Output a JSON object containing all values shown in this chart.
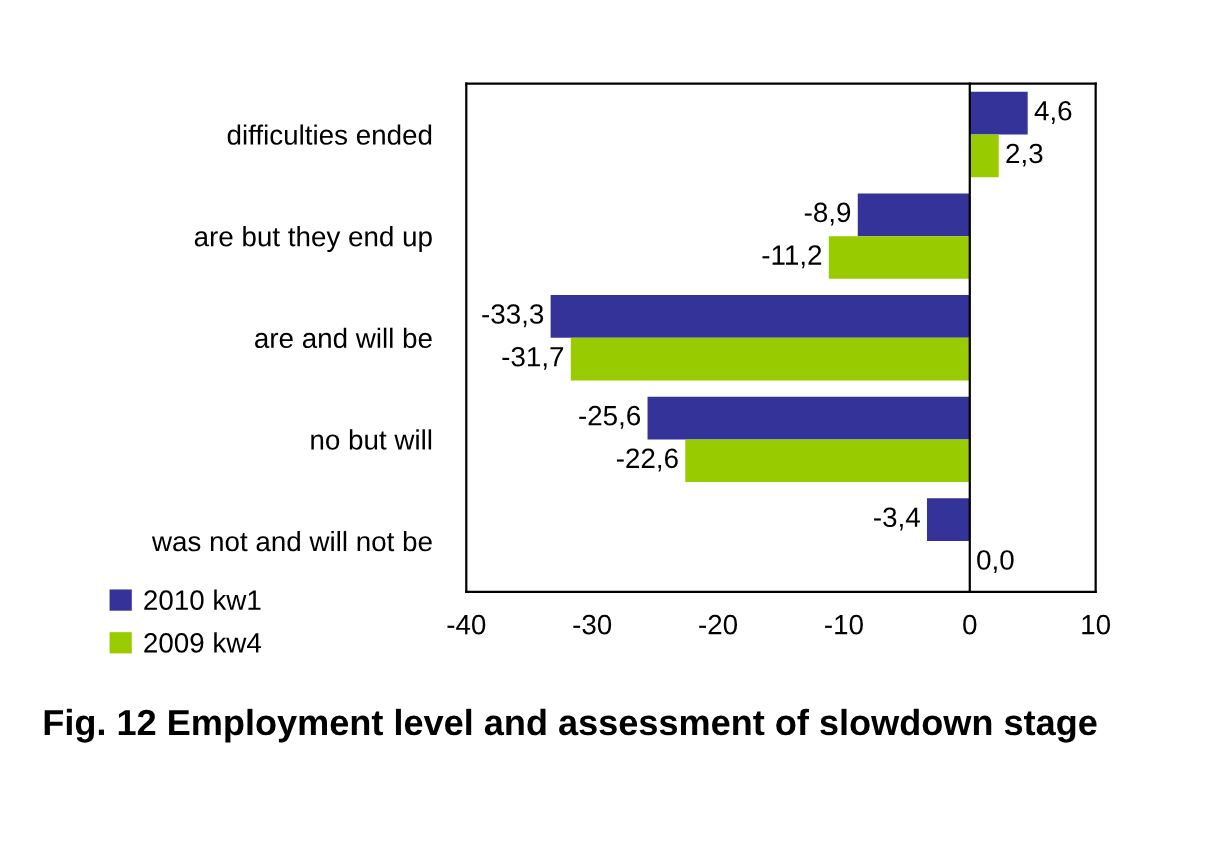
{
  "chart_data": {
    "type": "bar",
    "orientation": "horizontal",
    "title": "Fig. 12 Employment level and assessment of slowdown stage",
    "categories": [
      "difficulties ended",
      "are but they end up",
      "are and will be",
      "no but will",
      "was not and will not be"
    ],
    "series": [
      {
        "name": "2010 kw1",
        "color": "#333399",
        "values": [
          4.6,
          -8.9,
          -33.3,
          -25.6,
          -3.4
        ],
        "value_labels": [
          "4,6",
          "-8,9",
          "-33,3",
          "-25,6",
          "-3,4"
        ]
      },
      {
        "name": "2009 kw4",
        "color": "#99cc00",
        "values": [
          2.3,
          -11.2,
          -31.7,
          -22.6,
          0.0
        ],
        "value_labels": [
          "2,3",
          "-11,2",
          "-31,7",
          "-22,6",
          "0,0"
        ]
      }
    ],
    "xlim": [
      -40,
      10
    ],
    "xticks": [
      -40,
      -30,
      -20,
      -10,
      0,
      10
    ],
    "legend": "bottom left"
  }
}
